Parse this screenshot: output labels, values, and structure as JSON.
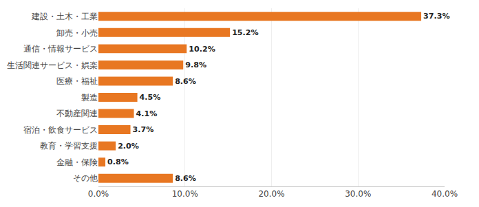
{
  "chart_data": {
    "type": "bar",
    "orientation": "horizontal",
    "categories": [
      "建設・土木・工業",
      "卸売・小売",
      "通信・情報サービス",
      "生活関連サービス・娯楽",
      "医療・福祉",
      "製造",
      "不動産関連",
      "宿泊・飲食サービス",
      "教育・学習支援",
      "金融・保険",
      "その他"
    ],
    "values": [
      37.3,
      15.2,
      10.2,
      9.8,
      8.6,
      4.5,
      4.1,
      3.7,
      2.0,
      0.8,
      8.6
    ],
    "value_labels": [
      "37.3%",
      "15.2%",
      "10.2%",
      "9.8%",
      "8.6%",
      "4.5%",
      "4.1%",
      "3.7%",
      "2.0%",
      "0.8%",
      "8.6%"
    ],
    "data_labels": true,
    "color": "#E87722",
    "xlim": [
      0,
      40
    ],
    "xticks": [
      {
        "value": 0,
        "label": "0.0%"
      },
      {
        "value": 10,
        "label": "10.0%"
      },
      {
        "value": 20,
        "label": "20.0%"
      },
      {
        "value": 30,
        "label": "30.0%"
      },
      {
        "value": 40,
        "label": "40.0%"
      }
    ],
    "grid": true
  }
}
